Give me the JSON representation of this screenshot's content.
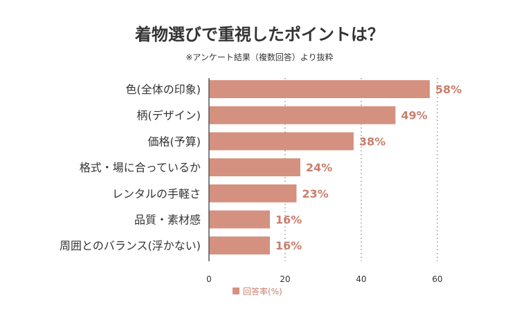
{
  "chart_data": {
    "type": "bar",
    "orientation": "horizontal",
    "title": "着物選びで重視したポイントは？",
    "subtitle": "※アンケート結果（複数回答）より抜粋",
    "categories": [
      "色(全体の印象)",
      "柄(デザイン)",
      "価格(予算)",
      "格式・場に合っているか",
      "レンタルの手軽さ",
      "品質・素材感",
      "周囲とのバランス(浮かない)"
    ],
    "series": [
      {
        "name": "回答率(%)",
        "values": [
          58,
          49,
          38,
          24,
          23,
          16,
          16
        ],
        "labels": [
          "58%",
          "49%",
          "38%",
          "24%",
          "23%",
          "16%",
          "16%"
        ]
      }
    ],
    "xlim": [
      0,
      60
    ],
    "xticks": [
      "0",
      "20",
      "40",
      "60"
    ],
    "grid": "vertical-dotted",
    "legend_position": "bottom-center",
    "colors": {
      "bar": "#d4917f",
      "label": "#c97e6c",
      "grid": "#a58aa5",
      "axis": "#555555",
      "text": "#333333"
    }
  }
}
